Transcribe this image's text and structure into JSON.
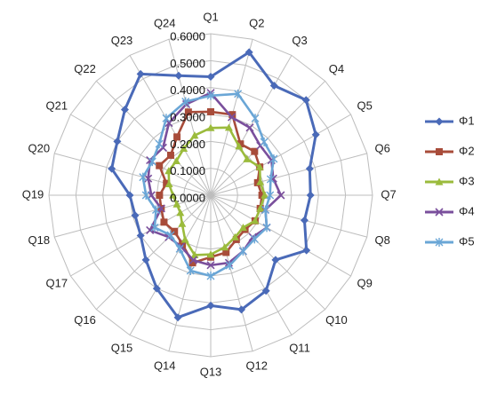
{
  "chart_data": {
    "type": "radar",
    "title": "",
    "categories": [
      "Q1",
      "Q2",
      "Q3",
      "Q4",
      "Q5",
      "Q6",
      "Q7",
      "Q8",
      "Q9",
      "Q10",
      "Q11",
      "Q12",
      "Q13",
      "Q14",
      "Q15",
      "Q16",
      "Q17",
      "Q18",
      "Q19",
      "Q20",
      "Q21",
      "Q22",
      "Q23",
      "Q24"
    ],
    "r_ticks": [
      "0.0000",
      "0.1000",
      "0.2000",
      "0.3000",
      "0.4000",
      "0.5000",
      "0.6000"
    ],
    "rlim": [
      0,
      0.6
    ],
    "grid": true,
    "legend_position": "right",
    "series": [
      {
        "name": "Φ1",
        "color": "#4a6ab8",
        "marker": "diamond",
        "values": [
          0.44,
          0.55,
          0.47,
          0.5,
          0.45,
          0.38,
          0.37,
          0.36,
          0.41,
          0.34,
          0.41,
          0.44,
          0.41,
          0.47,
          0.4,
          0.34,
          0.3,
          0.29,
          0.3,
          0.38,
          0.4,
          0.45,
          0.52,
          0.46
        ]
      },
      {
        "name": "Φ2",
        "color": "#a84c3a",
        "marker": "square",
        "values": [
          0.31,
          0.31,
          0.22,
          0.23,
          0.21,
          0.18,
          0.19,
          0.19,
          0.19,
          0.18,
          0.19,
          0.22,
          0.23,
          0.26,
          0.21,
          0.19,
          0.2,
          0.19,
          0.19,
          0.17,
          0.22,
          0.21,
          0.25,
          0.32
        ]
      },
      {
        "name": "Φ3",
        "color": "#9bbb3c",
        "marker": "triangle",
        "values": [
          0.25,
          0.26,
          0.21,
          0.19,
          0.21,
          0.19,
          0.2,
          0.19,
          0.19,
          0.17,
          0.18,
          0.2,
          0.22,
          0.23,
          0.19,
          0.15,
          0.13,
          0.13,
          0.14,
          0.16,
          0.18,
          0.18,
          0.2,
          0.23
        ]
      },
      {
        "name": "Φ4",
        "color": "#7a4f9c",
        "marker": "x",
        "values": [
          0.38,
          0.3,
          0.29,
          0.26,
          0.26,
          0.24,
          0.26,
          0.21,
          0.24,
          0.22,
          0.24,
          0.26,
          0.26,
          0.25,
          0.22,
          0.22,
          0.26,
          0.19,
          0.22,
          0.24,
          0.26,
          0.25,
          0.31,
          0.35
        ]
      },
      {
        "name": "Φ5",
        "color": "#6aa6d6",
        "marker": "star",
        "values": [
          0.37,
          0.39,
          0.33,
          0.28,
          0.27,
          0.23,
          0.22,
          0.21,
          0.24,
          0.23,
          0.24,
          0.27,
          0.3,
          0.29,
          0.23,
          0.21,
          0.24,
          0.21,
          0.24,
          0.26,
          0.25,
          0.27,
          0.33,
          0.36
        ]
      }
    ]
  }
}
